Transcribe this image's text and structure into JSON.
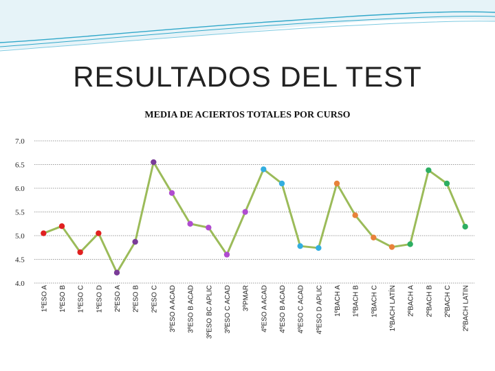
{
  "slide": {
    "title": "RESULTADOS DEL TEST"
  },
  "colors": {
    "line": "#9BBB59",
    "grid": "#999999",
    "header_wave": "#2FA7C9"
  },
  "chart_data": {
    "type": "line",
    "title": "MEDIA DE ACIERTOS TOTALES POR CURSO",
    "xlabel": "",
    "ylabel": "",
    "ylim": [
      4.0,
      7.0
    ],
    "yticks": [
      "4.0",
      "4.5",
      "5.0",
      "5.5",
      "6.0",
      "6.5",
      "7.0"
    ],
    "grid": true,
    "legend": "none",
    "categories": [
      "1ºESO A",
      "1ºESO B",
      "1ºESO C",
      "1ºESO D",
      "2ºESO A",
      "2ºESO B",
      "2ºESO C",
      "3ºESO A ACAD",
      "3ºESO B ACAD",
      "3ºESO BC APLIC",
      "3ºESO C ACAD",
      "3ºPMAR",
      "4ºESO A ACAD",
      "4ºESO B ACAD",
      "4ºESO C ACAD",
      "4ºESO D APLIC",
      "1ºBACH A",
      "1ºBACH B",
      "1ºBACH C",
      "1ºBACH LATÍN",
      "2ºBACH A",
      "2ºBACH B",
      "2ºBACH C",
      "2ºBACH LATIN"
    ],
    "values": [
      5.05,
      5.2,
      4.65,
      5.05,
      4.22,
      4.87,
      6.55,
      5.9,
      5.25,
      5.17,
      4.6,
      5.5,
      6.4,
      6.1,
      4.78,
      4.74,
      6.1,
      5.43,
      4.96,
      4.76,
      4.82,
      6.38,
      6.1,
      5.19
    ],
    "point_colors": [
      "#E02020",
      "#E02020",
      "#E02020",
      "#E02020",
      "#7A3C98",
      "#7A3C98",
      "#7A3C98",
      "#B04CD0",
      "#B04CD0",
      "#B04CD0",
      "#B04CD0",
      "#B04CD0",
      "#33AEE0",
      "#33AEE0",
      "#33AEE0",
      "#33AEE0",
      "#E8823A",
      "#E8823A",
      "#E8823A",
      "#E8823A",
      "#2DAE62",
      "#2DAE62",
      "#2DAE62",
      "#2DAE62"
    ]
  }
}
